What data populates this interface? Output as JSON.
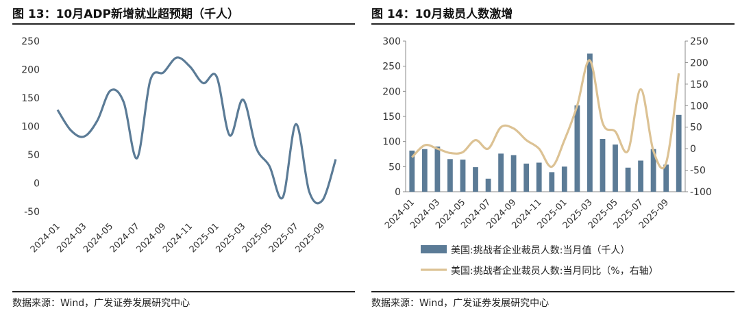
{
  "left": {
    "title": "图 13：10月ADP新增就业超预期（千人）",
    "source": "数据来源：Wind，广发证券发展研究中心",
    "chart_data": {
      "type": "line",
      "title": "图 13：10月ADP新增就业超预期（千人）",
      "ylim": [
        -50,
        250
      ],
      "yticks": [
        -50,
        0,
        50,
        100,
        150,
        200,
        250
      ],
      "x_tick_labels": [
        "2024-01",
        "2024-03",
        "2024-05",
        "2024-07",
        "2024-09",
        "2024-11",
        "2025-01",
        "2025-03",
        "2025-05",
        "2025-07",
        "2025-09"
      ],
      "x": [
        "2024-01",
        "2024-02",
        "2024-03",
        "2024-04",
        "2024-05",
        "2024-06",
        "2024-07",
        "2024-08",
        "2024-09",
        "2024-10",
        "2024-11",
        "2024-12",
        "2025-01",
        "2025-02",
        "2025-03",
        "2025-04",
        "2025-05",
        "2025-06",
        "2025-07",
        "2025-08",
        "2025-09",
        "2025-10"
      ],
      "series": [
        {
          "name": "ADP新增就业",
          "color": "#5b7b96",
          "values": [
            129,
            93,
            82,
            110,
            163,
            142,
            44,
            181,
            195,
            221,
            205,
            176,
            188,
            84,
            147,
            62,
            30,
            -25,
            104,
            -15,
            -30,
            42
          ]
        }
      ]
    }
  },
  "right": {
    "title": "图 14：10月裁员人数激增",
    "source": "数据来源：Wind，广发证券发展研究中心",
    "chart_data": {
      "type": "bar",
      "title": "图 14：10月裁员人数激增",
      "categories": [
        "2024-01",
        "2024-02",
        "2024-03",
        "2024-04",
        "2024-05",
        "2024-06",
        "2024-07",
        "2024-08",
        "2024-09",
        "2024-10",
        "2024-11",
        "2024-12",
        "2025-01",
        "2025-02",
        "2025-03",
        "2025-04",
        "2025-05",
        "2025-06",
        "2025-07",
        "2025-08",
        "2025-09",
        "2025-10"
      ],
      "x_tick_labels": [
        "2024-01",
        "2024-03",
        "2024-05",
        "2024-07",
        "2024-09",
        "2024-11",
        "2025-01",
        "2025-03",
        "2025-05",
        "2025-07",
        "2025-09"
      ],
      "ylim": [
        0,
        300
      ],
      "yticks": [
        0,
        50,
        100,
        150,
        200,
        250,
        300
      ],
      "y2lim": [
        -100,
        250
      ],
      "y2ticks": [
        -100,
        -50,
        0,
        50,
        100,
        150,
        200,
        250
      ],
      "series": [
        {
          "name": "美国:挑战者企业裁员人数:当月值（千人）",
          "type": "bar",
          "axis": "left",
          "color": "#5b7b96",
          "values": [
            82,
            85,
            90,
            65,
            64,
            49,
            26,
            76,
            73,
            56,
            58,
            39,
            50,
            172,
            275,
            105,
            94,
            48,
            62,
            85,
            54,
            153
          ]
        },
        {
          "name": "美国:挑战者企业裁员人数:当月同比（%，右轴）",
          "type": "line",
          "axis": "right",
          "color": "#dcc294",
          "values": [
            -20,
            8,
            0,
            -10,
            -8,
            20,
            0,
            50,
            47,
            20,
            0,
            -42,
            20,
            100,
            205,
            60,
            40,
            -5,
            138,
            -5,
            -33,
            175
          ]
        }
      ]
    }
  }
}
